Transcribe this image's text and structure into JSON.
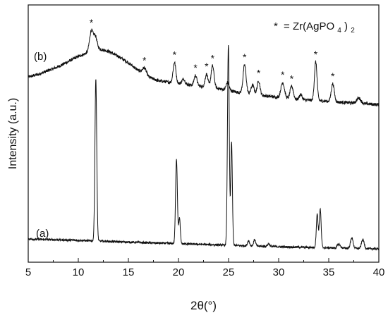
{
  "chart_data": {
    "type": "line",
    "xlabel": "2θ(°)",
    "ylabel": "Intensity (a.u.)",
    "xlim": [
      5,
      40
    ],
    "xticks": [
      "5",
      "10",
      "15",
      "20",
      "25",
      "30",
      "35",
      "40"
    ],
    "yticks": "none",
    "grid": false,
    "legend": {
      "marker": "*",
      "text": "= Zr(AgPO",
      "subscript": "4",
      "suffix": ")",
      "subscript2": "2",
      "placement": "top-right"
    },
    "series": [
      {
        "name": "(b)",
        "label": "(b)",
        "baseline": [
          [
            5,
            0.72
          ],
          [
            6,
            0.73
          ],
          [
            7,
            0.745
          ],
          [
            8,
            0.76
          ],
          [
            9,
            0.78
          ],
          [
            10,
            0.8
          ],
          [
            11,
            0.815
          ],
          [
            12,
            0.83
          ],
          [
            13,
            0.82
          ],
          [
            14,
            0.8
          ],
          [
            15,
            0.775
          ],
          [
            16,
            0.745
          ],
          [
            17,
            0.72
          ],
          [
            18,
            0.705
          ],
          [
            19,
            0.7
          ],
          [
            20,
            0.695
          ],
          [
            21,
            0.69
          ],
          [
            22,
            0.685
          ],
          [
            23,
            0.68
          ],
          [
            24,
            0.675
          ],
          [
            25,
            0.668
          ],
          [
            26,
            0.66
          ],
          [
            27,
            0.655
          ],
          [
            28,
            0.65
          ],
          [
            29,
            0.645
          ],
          [
            30,
            0.64
          ],
          [
            31,
            0.635
          ],
          [
            32,
            0.632
          ],
          [
            33,
            0.63
          ],
          [
            34,
            0.628
          ],
          [
            35,
            0.625
          ],
          [
            36,
            0.622
          ],
          [
            37,
            0.62
          ],
          [
            38,
            0.618
          ],
          [
            39,
            0.615
          ],
          [
            40,
            0.612
          ]
        ],
        "peaks": [
          {
            "x": 11.3,
            "h": 0.08,
            "w": 0.18,
            "starred": true
          },
          {
            "x": 11.7,
            "h": 0.05,
            "w": 0.16,
            "starred": false
          },
          {
            "x": 16.6,
            "h": 0.025,
            "w": 0.2,
            "starred": true
          },
          {
            "x": 19.6,
            "h": 0.08,
            "w": 0.14,
            "starred": true
          },
          {
            "x": 20.5,
            "h": 0.02,
            "w": 0.15,
            "starred": false
          },
          {
            "x": 21.7,
            "h": 0.04,
            "w": 0.14,
            "starred": true
          },
          {
            "x": 22.8,
            "h": 0.05,
            "w": 0.14,
            "starred": true
          },
          {
            "x": 23.4,
            "h": 0.085,
            "w": 0.15,
            "starred": true
          },
          {
            "x": 24.9,
            "h": 0.03,
            "w": 0.14,
            "starred": false
          },
          {
            "x": 26.6,
            "h": 0.11,
            "w": 0.15,
            "starred": true
          },
          {
            "x": 27.4,
            "h": 0.035,
            "w": 0.15,
            "starred": false
          },
          {
            "x": 28.0,
            "h": 0.055,
            "w": 0.14,
            "starred": true
          },
          {
            "x": 30.4,
            "h": 0.06,
            "w": 0.18,
            "starred": true
          },
          {
            "x": 31.3,
            "h": 0.05,
            "w": 0.16,
            "starred": true
          },
          {
            "x": 32.2,
            "h": 0.02,
            "w": 0.14,
            "starred": false
          },
          {
            "x": 33.7,
            "h": 0.15,
            "w": 0.13,
            "starred": true
          },
          {
            "x": 35.4,
            "h": 0.07,
            "w": 0.15,
            "starred": true
          },
          {
            "x": 38.0,
            "h": 0.02,
            "w": 0.2,
            "starred": false
          }
        ],
        "noise": 0.006
      },
      {
        "name": "(a)",
        "label": "(a)",
        "baseline": [
          [
            5,
            0.09
          ],
          [
            10,
            0.085
          ],
          [
            15,
            0.078
          ],
          [
            20,
            0.072
          ],
          [
            25,
            0.066
          ],
          [
            30,
            0.06
          ],
          [
            35,
            0.056
          ],
          [
            40,
            0.052
          ]
        ],
        "peaks": [
          {
            "x": 11.75,
            "h": 0.63,
            "w": 0.09
          },
          {
            "x": 19.8,
            "h": 0.33,
            "w": 0.09
          },
          {
            "x": 20.1,
            "h": 0.1,
            "w": 0.08
          },
          {
            "x": 24.98,
            "h": 0.78,
            "w": 0.09
          },
          {
            "x": 25.3,
            "h": 0.4,
            "w": 0.08
          },
          {
            "x": 27.0,
            "h": 0.02,
            "w": 0.1
          },
          {
            "x": 27.6,
            "h": 0.025,
            "w": 0.1
          },
          {
            "x": 29.0,
            "h": 0.01,
            "w": 0.12
          },
          {
            "x": 33.85,
            "h": 0.13,
            "w": 0.09
          },
          {
            "x": 34.15,
            "h": 0.15,
            "w": 0.09
          },
          {
            "x": 36.0,
            "h": 0.015,
            "w": 0.15
          },
          {
            "x": 37.3,
            "h": 0.04,
            "w": 0.13
          },
          {
            "x": 38.4,
            "h": 0.035,
            "w": 0.13
          }
        ],
        "noise": 0.004
      }
    ]
  }
}
